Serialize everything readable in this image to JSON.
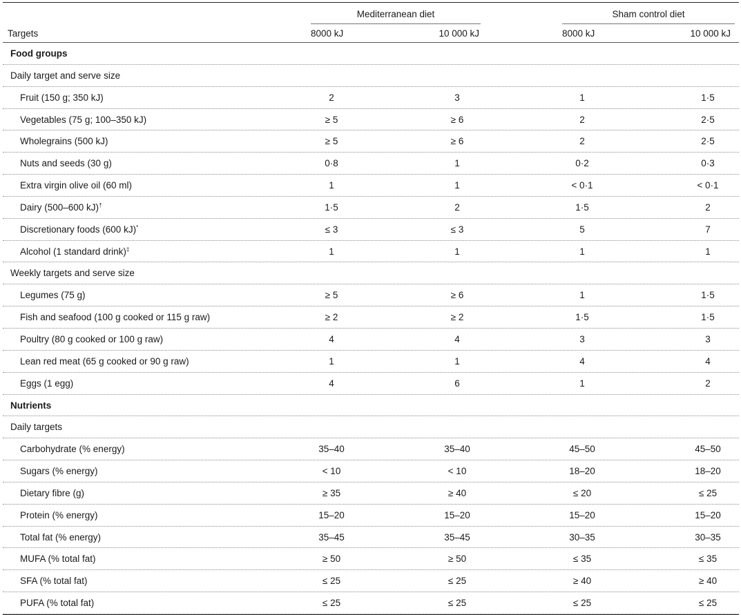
{
  "header": {
    "targets_label": "Targets",
    "groups": [
      "Mediterranean diet",
      "Sham control diet"
    ],
    "columns": [
      "8000 kJ",
      "10 000 kJ",
      "8000 kJ",
      "10 000 kJ"
    ]
  },
  "rows": [
    {
      "kind": "section",
      "label": "Food groups"
    },
    {
      "kind": "subsection",
      "label": "Daily target and serve size"
    },
    {
      "kind": "item",
      "label": "Fruit (150 g; 350 kJ)",
      "sup": "",
      "values": [
        "2",
        "3",
        "1",
        "1·5"
      ]
    },
    {
      "kind": "item",
      "label": "Vegetables (75 g; 100–350 kJ)",
      "sup": "",
      "values": [
        "≥ 5",
        "≥ 6",
        "2",
        "2·5"
      ]
    },
    {
      "kind": "item",
      "label": "Wholegrains (500 kJ)",
      "sup": "",
      "values": [
        "≥ 5",
        "≥ 6",
        "2",
        "2·5"
      ]
    },
    {
      "kind": "item",
      "label": "Nuts and seeds (30 g)",
      "sup": "",
      "values": [
        "0·8",
        "1",
        "0·2",
        "0·3"
      ]
    },
    {
      "kind": "item",
      "label": "Extra virgin olive oil (60 ml)",
      "sup": "",
      "values": [
        "1",
        "1",
        "< 0·1",
        "< 0·1"
      ]
    },
    {
      "kind": "item",
      "label": "Dairy (500–600 kJ)",
      "sup": "†",
      "values": [
        "1·5",
        "2",
        "1·5",
        "2"
      ]
    },
    {
      "kind": "item",
      "label": "Discretionary foods (600 kJ)",
      "sup": "*",
      "values": [
        "≤ 3",
        "≤ 3",
        "5",
        "7"
      ]
    },
    {
      "kind": "item",
      "label": "Alcohol (1 standard drink)",
      "sup": "‡",
      "values": [
        "1",
        "1",
        "1",
        "1"
      ]
    },
    {
      "kind": "subsection",
      "label": "Weekly targets and serve size"
    },
    {
      "kind": "item",
      "label": "Legumes (75 g)",
      "sup": "",
      "values": [
        "≥ 5",
        "≥ 6",
        "1",
        "1·5"
      ]
    },
    {
      "kind": "item",
      "label": "Fish and seafood (100 g cooked or 115 g raw)",
      "sup": "",
      "values": [
        "≥ 2",
        "≥ 2",
        "1·5",
        "1·5"
      ]
    },
    {
      "kind": "item",
      "label": "Poultry (80 g cooked or 100 g raw)",
      "sup": "",
      "values": [
        "4",
        "4",
        "3",
        "3"
      ]
    },
    {
      "kind": "item",
      "label": "Lean red meat (65 g cooked or 90 g raw)",
      "sup": "",
      "values": [
        "1",
        "1",
        "4",
        "4"
      ]
    },
    {
      "kind": "item",
      "label": "Eggs (1 egg)",
      "sup": "",
      "values": [
        "4",
        "6",
        "1",
        "2"
      ]
    },
    {
      "kind": "section",
      "label": "Nutrients"
    },
    {
      "kind": "subsection",
      "label": "Daily targets"
    },
    {
      "kind": "item",
      "label": "Carbohydrate (% energy)",
      "sup": "",
      "values": [
        "35–40",
        "35–40",
        "45–50",
        "45–50"
      ]
    },
    {
      "kind": "item",
      "label": "Sugars (% energy)",
      "sup": "",
      "values": [
        "< 10",
        "< 10",
        "18–20",
        "18–20"
      ]
    },
    {
      "kind": "item",
      "label": "Dietary fibre (g)",
      "sup": "",
      "values": [
        "≥ 35",
        "≥ 40",
        "≤ 20",
        "≤ 25"
      ]
    },
    {
      "kind": "item",
      "label": "Protein (% energy)",
      "sup": "",
      "values": [
        "15–20",
        "15–20",
        "15–20",
        "15–20"
      ]
    },
    {
      "kind": "item",
      "label": "Total fat (% energy)",
      "sup": "",
      "values": [
        "35–45",
        "35–45",
        "30–35",
        "30–35"
      ]
    },
    {
      "kind": "item",
      "label": "MUFA (% total fat)",
      "sup": "",
      "values": [
        "≥ 50",
        "≥ 50",
        "≤ 35",
        "≤ 35"
      ]
    },
    {
      "kind": "item",
      "label": "SFA (% total fat)",
      "sup": "",
      "values": [
        "≤ 25",
        "≤ 25",
        "≥ 40",
        "≥ 40"
      ]
    },
    {
      "kind": "item",
      "label": "PUFA (% total fat)",
      "sup": "",
      "values": [
        "≤ 25",
        "≤ 25",
        "≤ 25",
        "≤ 25"
      ]
    }
  ]
}
